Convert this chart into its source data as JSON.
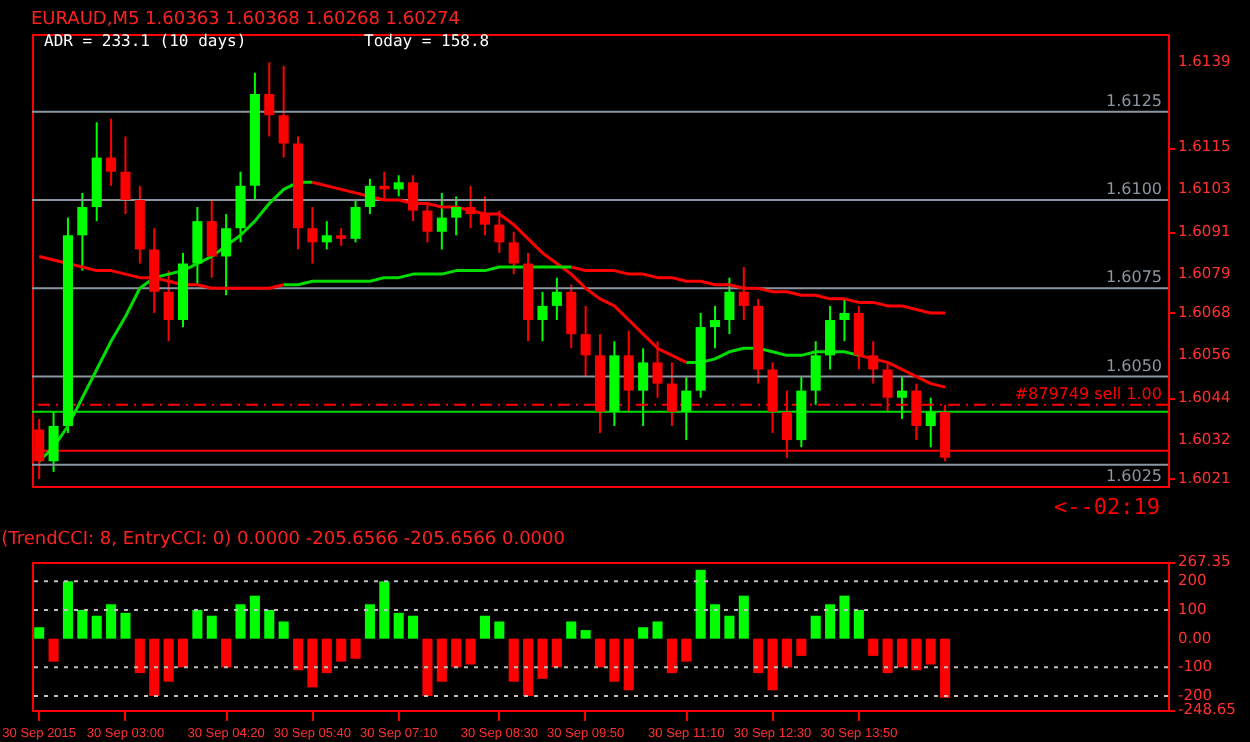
{
  "chart_data": [
    {
      "type": "candlestick",
      "title": "EURAUD,M5 1.60363 1.60368 1.60268 1.60274",
      "categories": [
        null,
        null,
        null,
        null,
        null,
        null,
        null,
        null,
        null,
        null,
        null,
        null,
        null,
        null,
        null,
        null,
        null,
        null,
        null,
        null,
        null,
        null,
        null,
        null,
        null,
        null,
        null,
        null,
        null,
        null,
        null,
        null,
        null,
        null,
        null,
        null,
        null,
        null,
        null,
        null,
        null,
        null,
        null,
        null,
        null,
        null,
        null,
        null,
        null,
        null,
        null,
        null,
        null,
        null,
        null,
        null,
        null,
        null,
        null,
        null,
        null,
        null,
        null,
        null,
        null,
        null,
        null,
        null,
        null,
        null,
        null,
        null,
        null,
        null,
        null,
        null,
        null,
        null,
        null
      ],
      "ohlc": [
        [
          1.6035,
          1.6038,
          1.6021,
          1.6026
        ],
        [
          1.6026,
          1.604,
          1.6023,
          1.6036
        ],
        [
          1.6036,
          1.6095,
          1.6034,
          1.609
        ],
        [
          1.609,
          1.6102,
          1.608,
          1.6098
        ],
        [
          1.6098,
          1.6122,
          1.6094,
          1.6112
        ],
        [
          1.6112,
          1.6123,
          1.6104,
          1.6108
        ],
        [
          1.6108,
          1.6118,
          1.6096,
          1.61
        ],
        [
          1.61,
          1.6104,
          1.6082,
          1.6086
        ],
        [
          1.6086,
          1.6092,
          1.6068,
          1.6074
        ],
        [
          1.6074,
          1.608,
          1.606,
          1.6066
        ],
        [
          1.6066,
          1.6085,
          1.6064,
          1.6082
        ],
        [
          1.6082,
          1.6098,
          1.6076,
          1.6094
        ],
        [
          1.6094,
          1.61,
          1.6078,
          1.6084
        ],
        [
          1.6084,
          1.6096,
          1.6073,
          1.6092
        ],
        [
          1.6092,
          1.6108,
          1.6088,
          1.6104
        ],
        [
          1.6104,
          1.6136,
          1.61,
          1.613
        ],
        [
          1.613,
          1.6139,
          1.6118,
          1.6124
        ],
        [
          1.6124,
          1.6138,
          1.6112,
          1.6116
        ],
        [
          1.6116,
          1.6118,
          1.6086,
          1.6092
        ],
        [
          1.6092,
          1.6098,
          1.6082,
          1.6088
        ],
        [
          1.6088,
          1.6094,
          1.6086,
          1.609
        ],
        [
          1.609,
          1.6092,
          1.6087,
          1.6089
        ],
        [
          1.6089,
          1.61,
          1.6088,
          1.6098
        ],
        [
          1.6098,
          1.6106,
          1.6096,
          1.6104
        ],
        [
          1.6104,
          1.6108,
          1.61,
          1.6103
        ],
        [
          1.6103,
          1.6107,
          1.6101,
          1.6105
        ],
        [
          1.6105,
          1.6107,
          1.6094,
          1.6097
        ],
        [
          1.6097,
          1.6099,
          1.6088,
          1.6091
        ],
        [
          1.6091,
          1.6102,
          1.6086,
          1.6095
        ],
        [
          1.6095,
          1.6101,
          1.609,
          1.6098
        ],
        [
          1.6098,
          1.6104,
          1.6092,
          1.6096
        ],
        [
          1.6096,
          1.6101,
          1.609,
          1.6093
        ],
        [
          1.6093,
          1.6097,
          1.6085,
          1.6088
        ],
        [
          1.6088,
          1.6091,
          1.6079,
          1.6082
        ],
        [
          1.6082,
          1.6085,
          1.606,
          1.6066
        ],
        [
          1.6066,
          1.6074,
          1.606,
          1.607
        ],
        [
          1.607,
          1.6078,
          1.6066,
          1.6074
        ],
        [
          1.6074,
          1.6076,
          1.6058,
          1.6062
        ],
        [
          1.6062,
          1.607,
          1.605,
          1.6056
        ],
        [
          1.6056,
          1.6062,
          1.6034,
          1.604
        ],
        [
          1.604,
          1.606,
          1.6036,
          1.6056
        ],
        [
          1.6056,
          1.6063,
          1.604,
          1.6046
        ],
        [
          1.6046,
          1.6058,
          1.6036,
          1.6054
        ],
        [
          1.6054,
          1.606,
          1.6044,
          1.6048
        ],
        [
          1.6048,
          1.6054,
          1.6036,
          1.604
        ],
        [
          1.604,
          1.605,
          1.6032,
          1.6046
        ],
        [
          1.6046,
          1.6068,
          1.6044,
          1.6064
        ],
        [
          1.6064,
          1.607,
          1.6058,
          1.6066
        ],
        [
          1.6066,
          1.6078,
          1.6062,
          1.6074
        ],
        [
          1.6074,
          1.6081,
          1.6066,
          1.607
        ],
        [
          1.607,
          1.6072,
          1.6048,
          1.6052
        ],
        [
          1.6052,
          1.6054,
          1.6034,
          1.604
        ],
        [
          1.604,
          1.6046,
          1.6027,
          1.6032
        ],
        [
          1.6032,
          1.605,
          1.603,
          1.6046
        ],
        [
          1.6046,
          1.606,
          1.6042,
          1.6056
        ],
        [
          1.6056,
          1.607,
          1.6052,
          1.6066
        ],
        [
          1.6066,
          1.6072,
          1.606,
          1.6068
        ],
        [
          1.6068,
          1.607,
          1.6052,
          1.6056
        ],
        [
          1.6056,
          1.606,
          1.6048,
          1.6052
        ],
        [
          1.6052,
          1.6054,
          1.604,
          1.6044
        ],
        [
          1.6044,
          1.605,
          1.6038,
          1.6046
        ],
        [
          1.6046,
          1.6048,
          1.6032,
          1.6036
        ],
        [
          1.6036,
          1.6044,
          1.603,
          1.604
        ],
        [
          1.604,
          1.6042,
          1.6026,
          1.6027
        ],
        null,
        null,
        null,
        null,
        null,
        null,
        null,
        null,
        null,
        null,
        null,
        null,
        null,
        null,
        null
      ],
      "colors": [
        "#ff0000",
        "#00ff00",
        "#00ff00",
        "#00ff00",
        "#00ff00",
        "#ff0000",
        "#ff0000",
        "#ff0000",
        "#ff0000",
        "#ff0000",
        "#00ff00",
        "#00ff00",
        "#ff0000",
        "#00ff00",
        "#00ff00",
        "#00ff00",
        "#ff0000",
        "#ff0000",
        "#ff0000",
        "#ff0000",
        "#00ff00",
        "#ff0000",
        "#00ff00",
        "#00ff00",
        "#ff0000",
        "#00ff00",
        "#ff0000",
        "#ff0000",
        "#00ff00",
        "#00ff00",
        "#ff0000",
        "#ff0000",
        "#ff0000",
        "#ff0000",
        "#ff0000",
        "#00ff00",
        "#00ff00",
        "#ff0000",
        "#ff0000",
        "#ff0000",
        "#00ff00",
        "#ff0000",
        "#00ff00",
        "#ff0000",
        "#ff0000",
        "#00ff00",
        "#00ff00",
        "#00ff00",
        "#00ff00",
        "#ff0000",
        "#ff0000",
        "#ff0000",
        "#ff0000",
        "#00ff00",
        "#00ff00",
        "#00ff00",
        "#00ff00",
        "#ff0000",
        "#ff0000",
        "#ff0000",
        "#00ff00",
        "#ff0000",
        "#00ff00",
        "#ff0000",
        null,
        null,
        null,
        null,
        null,
        null,
        null,
        null,
        null,
        null,
        null,
        null,
        null,
        null,
        null
      ],
      "series": [
        {
          "type": "line",
          "color": "#00dd00",
          "values": [
            1.6026,
            1.603,
            1.6036,
            1.6044,
            1.6052,
            1.606,
            1.6067,
            1.6075,
            1.6078,
            1.6079,
            1.608,
            1.6082,
            1.6084,
            1.6087,
            1.609,
            1.6094,
            1.6099,
            1.6103,
            1.6105,
            1.6105,
            null,
            null,
            null,
            null,
            null,
            null,
            null,
            null,
            null,
            null,
            null,
            null,
            null,
            null,
            null,
            null,
            null,
            null,
            null,
            null,
            null,
            null,
            null,
            null,
            null,
            1.6054,
            1.6054,
            1.6055,
            1.6057,
            1.6058,
            1.6058,
            1.6057,
            1.6056,
            1.6056,
            1.6057,
            1.6057,
            1.6057,
            1.6056,
            null,
            null,
            null,
            null,
            null,
            null,
            null,
            null,
            null,
            null,
            null,
            null,
            null,
            null,
            null,
            null,
            null,
            null,
            null,
            null,
            null
          ]
        },
        {
          "type": "line",
          "color": "#ff0000",
          "values": [
            null,
            null,
            null,
            null,
            null,
            null,
            null,
            null,
            null,
            null,
            null,
            null,
            null,
            null,
            null,
            null,
            null,
            null,
            null,
            1.6105,
            1.6104,
            1.6103,
            1.6102,
            1.6101,
            1.61,
            1.61,
            1.6099,
            1.6099,
            1.6098,
            1.6098,
            1.6097,
            1.6096,
            1.6096,
            1.6093,
            1.6089,
            1.6085,
            1.6082,
            1.6079,
            1.6075,
            1.6072,
            1.607,
            1.6066,
            1.6062,
            1.6058,
            1.6056,
            1.6054,
            null,
            null,
            null,
            null,
            null,
            null,
            null,
            null,
            null,
            null,
            null,
            1.6056,
            1.6055,
            1.6054,
            1.6052,
            1.605,
            1.6048,
            1.6047,
            null,
            null,
            null,
            null,
            null,
            null,
            null,
            null,
            null,
            null,
            null,
            null,
            null,
            null,
            null
          ]
        },
        {
          "type": "line",
          "color": "#ff0000",
          "values": [
            1.6084,
            1.6083,
            1.6082,
            1.6081,
            1.608,
            1.608,
            1.6079,
            1.6078,
            1.6078,
            1.6077,
            1.6076,
            1.6076,
            1.6075,
            1.6075,
            1.6075,
            1.6075,
            1.6075,
            1.6076,
            null,
            null,
            null,
            null,
            null,
            null,
            null,
            null,
            null,
            null,
            null,
            null,
            null,
            null,
            null,
            null,
            null,
            null,
            null,
            1.6081,
            1.608,
            1.608,
            1.608,
            1.6079,
            1.6079,
            1.6078,
            1.6078,
            1.6077,
            1.6077,
            1.6076,
            1.6076,
            1.6075,
            1.6075,
            1.6074,
            1.6074,
            1.6073,
            1.6073,
            1.6072,
            1.6072,
            1.6071,
            1.6071,
            1.607,
            1.607,
            1.6069,
            1.6068,
            1.6068,
            null,
            null,
            null,
            null,
            null,
            null,
            null,
            null,
            null,
            null,
            null,
            null,
            null,
            null,
            null
          ]
        },
        {
          "type": "line",
          "color": "#00dd00",
          "values": [
            null,
            null,
            null,
            null,
            null,
            null,
            null,
            null,
            null,
            null,
            null,
            null,
            null,
            null,
            null,
            null,
            null,
            1.6076,
            1.6076,
            1.6077,
            1.6077,
            1.6077,
            1.6077,
            1.6077,
            1.6078,
            1.6078,
            1.6079,
            1.6079,
            1.6079,
            1.608,
            1.608,
            1.608,
            1.6081,
            1.6081,
            1.6081,
            1.6081,
            1.6081,
            1.6081,
            null,
            null,
            null,
            null,
            null,
            null,
            null,
            null,
            null,
            null,
            null,
            null,
            null,
            null,
            null,
            null,
            null,
            null,
            null,
            null,
            null,
            null,
            null,
            null,
            null,
            null,
            null,
            null,
            null,
            null,
            null,
            null,
            null,
            null,
            null,
            null,
            null,
            null,
            null,
            null,
            null
          ]
        }
      ],
      "ylim": [
        1.6019,
        1.6147
      ],
      "yticks": [
        1.6139,
        1.6115,
        1.6103,
        1.6091,
        1.6079,
        1.6068,
        1.6056,
        1.6044,
        1.6032,
        1.6021
      ],
      "tick_labels": "y",
      "ref_lines": [
        {
          "axis": "y",
          "value": 1.6125,
          "label": "1.6125",
          "color": "#8c96a0"
        },
        {
          "axis": "y",
          "value": 1.61,
          "label": "1.6100",
          "color": "#8c96a0"
        },
        {
          "axis": "y",
          "value": 1.6075,
          "label": "1.6075",
          "color": "#8c96a0"
        },
        {
          "axis": "y",
          "value": 1.605,
          "label": "1.6050",
          "color": "#8c96a0"
        },
        {
          "axis": "y",
          "value": 1.6025,
          "label": "1.6025",
          "color": "#8c96a0"
        },
        {
          "axis": "y",
          "value": 1.6042,
          "label": "#879749 sell 1.00",
          "color": "#ff0000",
          "line_style": "dashed"
        },
        {
          "axis": "y",
          "value": 1.604,
          "color": "#00dd00"
        },
        {
          "axis": "y",
          "value": 1.6029,
          "color": "#ff0000"
        }
      ],
      "annotations": [
        "ADR = 233.1  (10 days)",
        "Today = 158.8",
        "<--02:19"
      ]
    },
    {
      "type": "bar",
      "title": "(TrendCCI: 8, EntryCCI: 0) 0.0000 -205.6566 -205.6566 0.0000",
      "categories": [
        "30 Sep 2015",
        null,
        null,
        null,
        null,
        null,
        "30 Sep 03:00",
        null,
        null,
        null,
        null,
        null,
        null,
        "30 Sep 04:20",
        null,
        null,
        null,
        null,
        null,
        "30 Sep 05:40",
        null,
        null,
        null,
        null,
        null,
        "30 Sep 07:10",
        null,
        null,
        null,
        null,
        null,
        null,
        "30 Sep 08:30",
        null,
        null,
        null,
        null,
        null,
        "30 Sep 09:50",
        null,
        null,
        null,
        null,
        null,
        null,
        "30 Sep 11:10",
        null,
        null,
        null,
        null,
        null,
        "30 Sep 12:30",
        null,
        null,
        null,
        null,
        null,
        "30 Sep 13:50",
        null,
        null,
        null,
        null,
        null,
        null,
        null,
        null,
        null,
        null,
        null,
        null,
        null,
        null,
        null,
        null,
        null,
        null,
        null,
        null,
        null
      ],
      "values": [
        40,
        -80,
        200,
        100,
        80,
        120,
        90,
        -120,
        -200,
        -150,
        -100,
        100,
        80,
        -100,
        120,
        150,
        100,
        60,
        -110,
        -170,
        -120,
        -80,
        -70,
        120,
        200,
        90,
        80,
        -200,
        -150,
        -100,
        -90,
        80,
        60,
        -150,
        -200,
        -140,
        -100,
        60,
        30,
        -100,
        -150,
        -180,
        40,
        60,
        -120,
        -80,
        240,
        120,
        80,
        150,
        -120,
        -180,
        -100,
        -60,
        80,
        120,
        150,
        100,
        -60,
        -120,
        -100,
        -110,
        -90,
        -206,
        null,
        null,
        null,
        null,
        null,
        null,
        null,
        null,
        null,
        null,
        null,
        null,
        null,
        null,
        null
      ],
      "colors": [
        "#00ff00",
        "#ff0000",
        "#00ff00",
        "#00ff00",
        "#00ff00",
        "#00ff00",
        "#00ff00",
        "#ff0000",
        "#ff0000",
        "#ff0000",
        "#ff0000",
        "#00ff00",
        "#00ff00",
        "#ff0000",
        "#00ff00",
        "#00ff00",
        "#00ff00",
        "#00ff00",
        "#ff0000",
        "#ff0000",
        "#ff0000",
        "#ff0000",
        "#ff0000",
        "#00ff00",
        "#00ff00",
        "#00ff00",
        "#00ff00",
        "#ff0000",
        "#ff0000",
        "#ff0000",
        "#ff0000",
        "#00ff00",
        "#00ff00",
        "#ff0000",
        "#ff0000",
        "#ff0000",
        "#ff0000",
        "#00ff00",
        "#00ff00",
        "#ff0000",
        "#ff0000",
        "#ff0000",
        "#00ff00",
        "#00ff00",
        "#ff0000",
        "#ff0000",
        "#00ff00",
        "#00ff00",
        "#00ff00",
        "#00ff00",
        "#ff0000",
        "#ff0000",
        "#ff0000",
        "#ff0000",
        "#00ff00",
        "#00ff00",
        "#00ff00",
        "#00ff00",
        "#ff0000",
        "#ff0000",
        "#ff0000",
        "#ff0000",
        "#ff0000",
        "#ff0000",
        null,
        null,
        null,
        null,
        null,
        null,
        null,
        null,
        null,
        null,
        null,
        null,
        null,
        null,
        null
      ],
      "ylim": [
        -248.65,
        267.35
      ],
      "yticks": [
        267.35,
        200,
        100,
        {
          "value": 0,
          "label": "0.00"
        },
        -100,
        -200,
        -248.65
      ],
      "ref_lines": [
        {
          "axis": "y",
          "value": 200,
          "color": "#c0c0c0",
          "line_style": "dotted"
        },
        {
          "axis": "y",
          "value": 100,
          "color": "#c0c0c0",
          "line_style": "dotted"
        },
        {
          "axis": "y",
          "value": -100,
          "color": "#c0c0c0",
          "line_style": "dotted"
        },
        {
          "axis": "y",
          "value": -200,
          "color": "#c0c0c0",
          "line_style": "dotted"
        }
      ]
    }
  ]
}
